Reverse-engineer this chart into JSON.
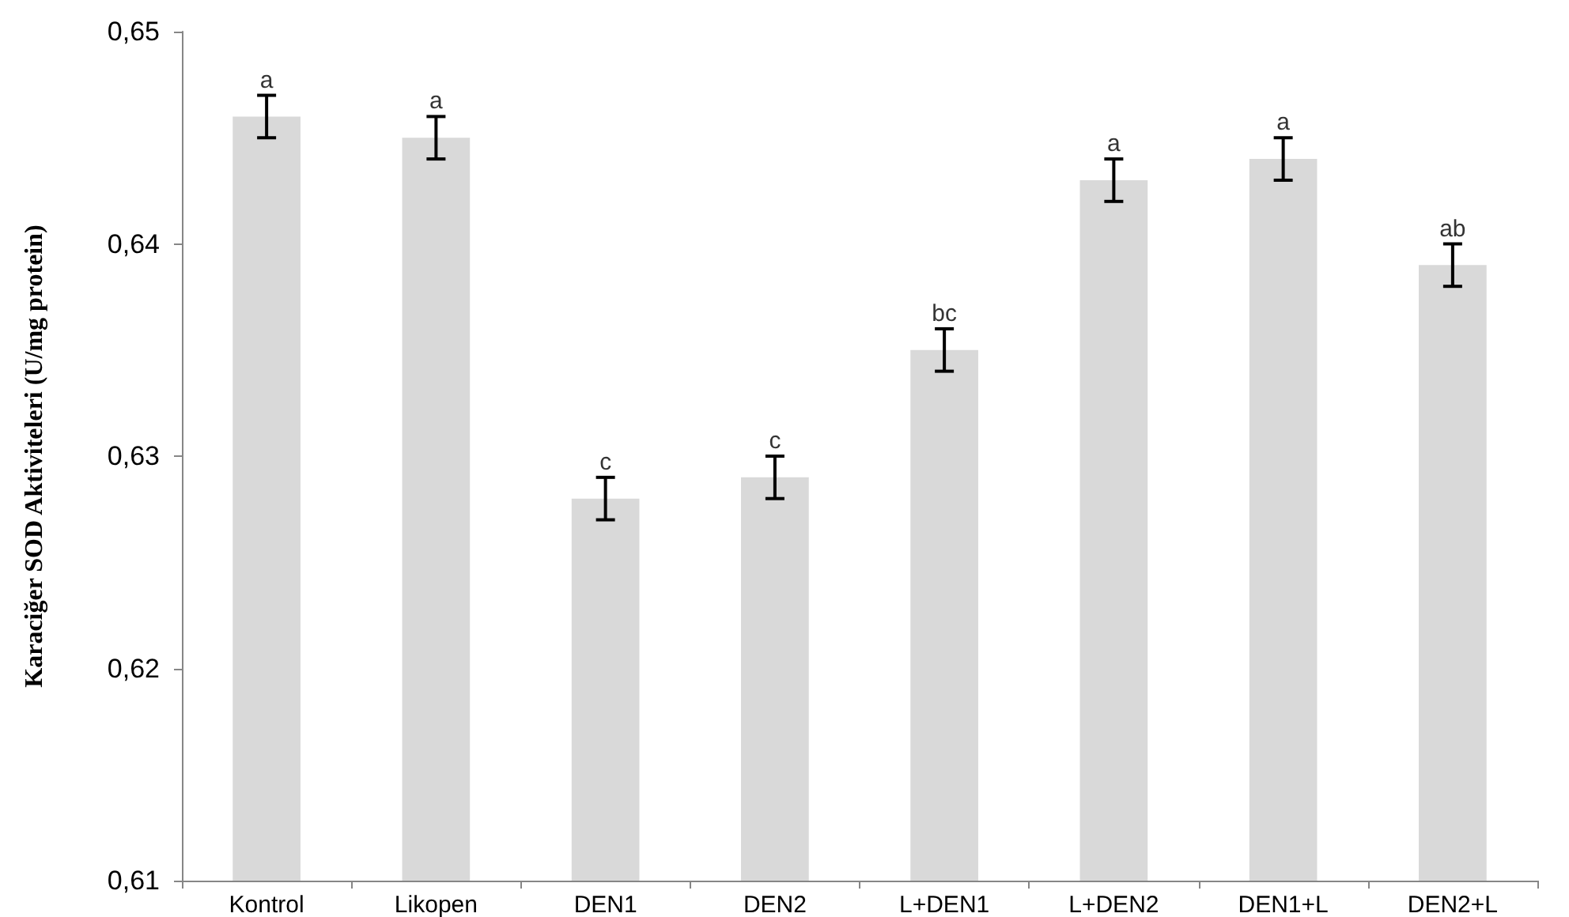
{
  "chart_data": {
    "type": "bar",
    "ylabel": "Karaciğer SOD Aktiviteleri (U/mg protein)",
    "categories": [
      "Kontrol",
      "Likopen",
      "DEN1",
      "DEN2",
      "L+DEN1",
      "L+DEN2",
      "DEN1+L",
      "DEN2+L"
    ],
    "values": [
      0.646,
      0.645,
      0.628,
      0.629,
      0.635,
      0.643,
      0.644,
      0.639
    ],
    "errors": [
      0.001,
      0.001,
      0.001,
      0.001,
      0.001,
      0.001,
      0.001,
      0.001
    ],
    "color": "#d9d9d9",
    "ylim": [
      0.61,
      0.65
    ],
    "yticks": [
      {
        "value": 0.61,
        "label": "0,61"
      },
      {
        "value": 0.62,
        "label": "0,62"
      },
      {
        "value": 0.63,
        "label": "0,63"
      },
      {
        "value": 0.64,
        "label": "0,64"
      },
      {
        "value": 0.65,
        "label": "0,65"
      }
    ],
    "annotations": [
      {
        "text": "a",
        "x": "Kontrol",
        "y": 0.647
      },
      {
        "text": "a",
        "x": "Likopen",
        "y": 0.646
      },
      {
        "text": "c",
        "x": "DEN1",
        "y": 0.629
      },
      {
        "text": "c",
        "x": "DEN2",
        "y": 0.63
      },
      {
        "text": "bc",
        "x": "L+DEN1",
        "y": 0.636
      },
      {
        "text": "a",
        "x": "L+DEN2",
        "y": 0.644
      },
      {
        "text": "a",
        "x": "DEN1+L",
        "y": 0.645
      },
      {
        "text": "ab",
        "x": "DEN2+L",
        "y": 0.64
      }
    ],
    "grid": false
  }
}
